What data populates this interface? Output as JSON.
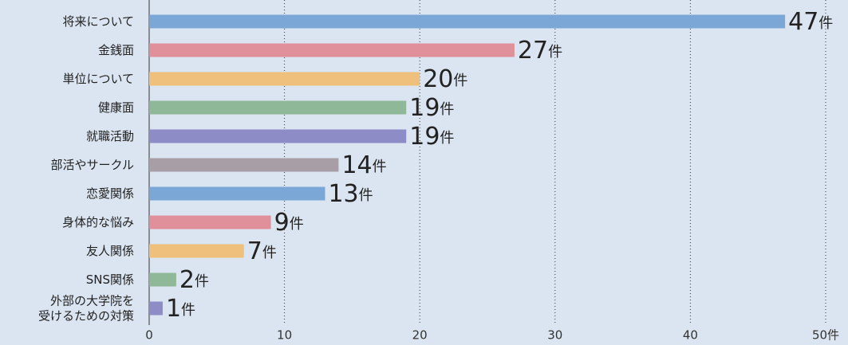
{
  "chart_data": {
    "type": "barh",
    "categories": [
      "将来について",
      "金銭面",
      "単位について",
      "健康面",
      "就職活動",
      "部活やサークル",
      "恋愛関係",
      "身体的な悩み",
      "友人関係",
      "SNS関係",
      "外部の大学院を\n受けるための対策"
    ],
    "values": [
      47,
      27,
      20,
      19,
      19,
      14,
      13,
      9,
      7,
      2,
      1
    ],
    "value_labels": [
      "47件",
      "27件",
      "20件",
      "19件",
      "19件",
      "14件",
      "13件",
      "9件",
      "7件",
      "2件",
      "1件"
    ],
    "colors": [
      "#7ba7d7",
      "#e0909a",
      "#efc07c",
      "#8fb898",
      "#8e8cc6",
      "#a89fa6",
      "#7ba7d7",
      "#e0909a",
      "#efc07c",
      "#8fb898",
      "#8e8cc6"
    ],
    "xlim": [
      0,
      50
    ],
    "xticks": [
      0,
      10,
      20,
      30,
      40,
      {
        "value": 50,
        "label": "50件"
      }
    ],
    "grid": true
  }
}
